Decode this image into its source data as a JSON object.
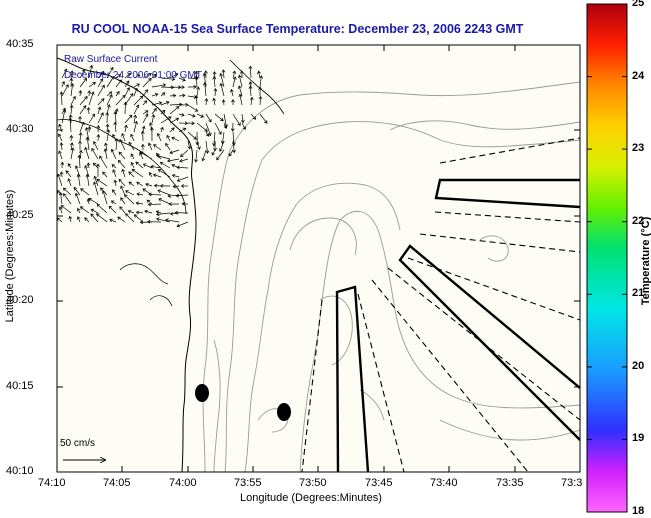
{
  "title": "RU COOL  NOAA-15  Sea Surface Temperature:  December 23, 2006 2243 GMT",
  "legend": {
    "line1": "Raw Surface Current",
    "line2": "December 24 2006 01:00 GMT"
  },
  "axes": {
    "x_label": "Longitude (Degrees:Minutes)",
    "y_label": "Latitude (Degrees:Minutes)",
    "x_ticks": [
      "74:10",
      "74:05",
      "74:00",
      "73:55",
      "73:50",
      "73:45",
      "73:40",
      "73:35",
      "73:3"
    ],
    "y_ticks": [
      "40:35",
      "40:30",
      "40:25",
      "40:20",
      "40:15",
      "40:10"
    ]
  },
  "colorbar": {
    "label": "Temperature (°C)",
    "ticks": [
      "25",
      "24",
      "23",
      "22",
      "21",
      "20",
      "19",
      "18"
    ],
    "min": 18,
    "max": 25
  },
  "scale_label": "50 cm/s",
  "colors": {
    "title": "#1a1aa8",
    "land": "#fdfdf5",
    "contour": "#9a9a9a",
    "outline": "#000000"
  }
}
